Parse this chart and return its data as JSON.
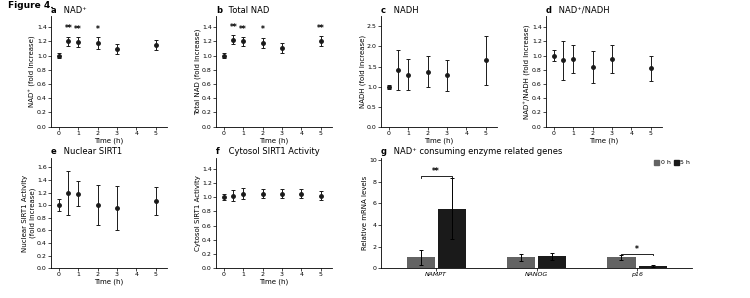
{
  "fig_title": "Figure 4.",
  "panel_a": {
    "label_bold": "a",
    "label_rest": " NAD⁺",
    "x": [
      0,
      0.5,
      1,
      2,
      3,
      5
    ],
    "y": [
      1.0,
      1.2,
      1.19,
      1.175,
      1.09,
      1.15
    ],
    "yerr": [
      0.03,
      0.065,
      0.065,
      0.085,
      0.07,
      0.07
    ],
    "sig": {
      "0.5": "**",
      "1": "**",
      "2": "*"
    },
    "ylabel": "NAD⁺ (fold Increase)",
    "xlabel": "Time (h)",
    "ylim": [
      0.0,
      1.55
    ],
    "yticks": [
      0.0,
      0.2,
      0.4,
      0.6,
      0.8,
      1.0,
      1.2,
      1.4
    ],
    "xticks": [
      0,
      1,
      2,
      3,
      4,
      5
    ]
  },
  "panel_b": {
    "label_bold": "b",
    "label_rest": " Total NAD",
    "x": [
      0,
      0.5,
      1,
      2,
      3,
      5
    ],
    "y": [
      1.0,
      1.22,
      1.2,
      1.18,
      1.1,
      1.2
    ],
    "yerr": [
      0.03,
      0.065,
      0.06,
      0.07,
      0.07,
      0.07
    ],
    "sig": {
      "0.5": "**",
      "1": "**",
      "2": "*",
      "5": "**"
    },
    "ylabel": "Total NAD (fold Increase)",
    "xlabel": "Time (h)",
    "ylim": [
      0.0,
      1.55
    ],
    "yticks": [
      0.0,
      0.2,
      0.4,
      0.6,
      0.8,
      1.0,
      1.2,
      1.4
    ],
    "xticks": [
      0,
      1,
      2,
      3,
      4,
      5
    ]
  },
  "panel_c": {
    "label_bold": "c",
    "label_rest": " NADH",
    "x": [
      0,
      0.5,
      1,
      2,
      3,
      5
    ],
    "y": [
      1.0,
      1.42,
      1.3,
      1.37,
      1.28,
      1.65
    ],
    "yerr": [
      0.05,
      0.5,
      0.38,
      0.38,
      0.38,
      0.6
    ],
    "sig": {},
    "ylabel": "NADH (fold Increase)",
    "xlabel": "Time (h)",
    "ylim": [
      0.0,
      2.75
    ],
    "yticks": [
      0.0,
      0.5,
      1.0,
      1.5,
      2.0,
      2.5
    ],
    "xticks": [
      0,
      1,
      2,
      3,
      4,
      5
    ]
  },
  "panel_d": {
    "label_bold": "d",
    "label_rest": " NAD⁺/NADH",
    "x": [
      0,
      0.5,
      1,
      2,
      3,
      5
    ],
    "y": [
      1.0,
      0.93,
      0.95,
      0.84,
      0.95,
      0.82
    ],
    "yerr": [
      0.08,
      0.28,
      0.2,
      0.22,
      0.2,
      0.18
    ],
    "sig": {},
    "ylabel": "NAD⁺/NADH (fold Increase)",
    "xlabel": "Time (h)",
    "ylim": [
      0.0,
      1.55
    ],
    "yticks": [
      0.0,
      0.2,
      0.4,
      0.6,
      0.8,
      1.0,
      1.2,
      1.4
    ],
    "xticks": [
      0,
      1,
      2,
      3,
      4,
      5
    ]
  },
  "panel_e": {
    "label_bold": "e",
    "label_rest": " Nuclear SIRT1",
    "x": [
      0,
      0.5,
      1,
      2,
      3,
      5
    ],
    "y": [
      1.0,
      1.2,
      1.18,
      1.0,
      0.95,
      1.07
    ],
    "yerr": [
      0.1,
      0.35,
      0.2,
      0.32,
      0.35,
      0.22
    ],
    "sig": {},
    "ylabel": "Nuclear SIRT1 Activity\n(fold Increase)",
    "xlabel": "Time (h)",
    "ylim": [
      0.0,
      1.75
    ],
    "yticks": [
      0.0,
      0.2,
      0.4,
      0.6,
      0.8,
      1.0,
      1.2,
      1.4,
      1.6
    ],
    "xticks": [
      0,
      1,
      2,
      3,
      4,
      5
    ]
  },
  "panel_f": {
    "label_bold": "f",
    "label_rest": " Cytosol SIRT1 Activity",
    "x": [
      0,
      0.5,
      1,
      2,
      3,
      4,
      5
    ],
    "y": [
      1.0,
      1.02,
      1.05,
      1.05,
      1.05,
      1.05,
      1.02
    ],
    "yerr": [
      0.04,
      0.08,
      0.08,
      0.06,
      0.07,
      0.06,
      0.06
    ],
    "sig": {},
    "ylabel": "Cytosol SIRT1 Activity",
    "xlabel": "Time (h)",
    "ylim": [
      0.0,
      1.55
    ],
    "yticks": [
      0.0,
      0.2,
      0.4,
      0.6,
      0.8,
      1.0,
      1.2,
      1.4
    ],
    "xticks": [
      0,
      1,
      2,
      3,
      4,
      5
    ]
  },
  "panel_g": {
    "label_bold": "g",
    "label_rest": " NAD⁺ consuming enzyme related genes",
    "categories": [
      "NAMPT",
      "NANOG",
      "p16"
    ],
    "values_0h": [
      1.0,
      1.0,
      1.0
    ],
    "values_5h": [
      5.5,
      1.1,
      0.18
    ],
    "err_0h": [
      0.7,
      0.3,
      0.2
    ],
    "err_5h": [
      2.8,
      0.3,
      0.08
    ],
    "sig_nampt": "**",
    "sig_p16": "*",
    "ylabel": "Relative mRNA levels",
    "ylim": [
      0.0,
      10.2
    ],
    "yticks": [
      0.0,
      2.0,
      4.0,
      6.0,
      8.0,
      10.0
    ],
    "legend_0h": "0 h",
    "legend_5h": "5 h",
    "bar_color_0h": "#636363",
    "bar_color_5h": "#1a1a1a"
  },
  "line_color": "#1a1a1a",
  "marker": "o",
  "markersize": 2.5,
  "linewidth": 1.0,
  "elinewidth": 0.7,
  "capsize": 1.5,
  "fontsize_label": 5.0,
  "fontsize_tick": 4.5,
  "fontsize_panel": 6.0,
  "fontsize_sig": 5.5,
  "fontsize_title": 6.5
}
